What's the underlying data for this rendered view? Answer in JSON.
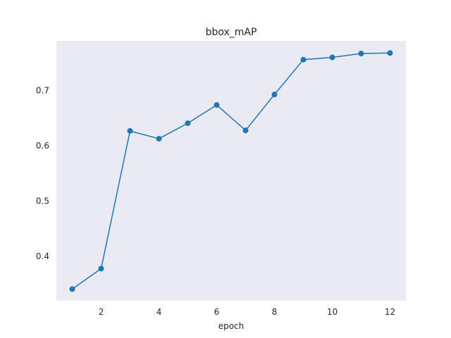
{
  "chart_data": {
    "type": "line",
    "title": "bbox_mAP",
    "xlabel": "epoch",
    "ylabel": "",
    "x": [
      1,
      2,
      3,
      4,
      5,
      6,
      7,
      8,
      9,
      10,
      11,
      12
    ],
    "series": [
      {
        "values": [
          0.341,
          0.378,
          0.627,
          0.613,
          0.641,
          0.674,
          0.628,
          0.693,
          0.756,
          0.76,
          0.767,
          0.768
        ]
      }
    ],
    "xlim": [
      0.45,
      12.55
    ],
    "ylim": [
      0.32,
      0.79
    ],
    "xticks": [
      2,
      4,
      6,
      8,
      10,
      12
    ],
    "yticks": [
      0.4,
      0.5,
      0.6,
      0.7
    ],
    "xtick_labels": [
      "2",
      "4",
      "6",
      "8",
      "10",
      "12"
    ],
    "ytick_labels": [
      "0.4",
      "0.5",
      "0.6",
      "0.7"
    ],
    "grid": false,
    "marker": "circle",
    "colors": {
      "line": "#1f77b4",
      "background": "#eaeaf2"
    }
  }
}
